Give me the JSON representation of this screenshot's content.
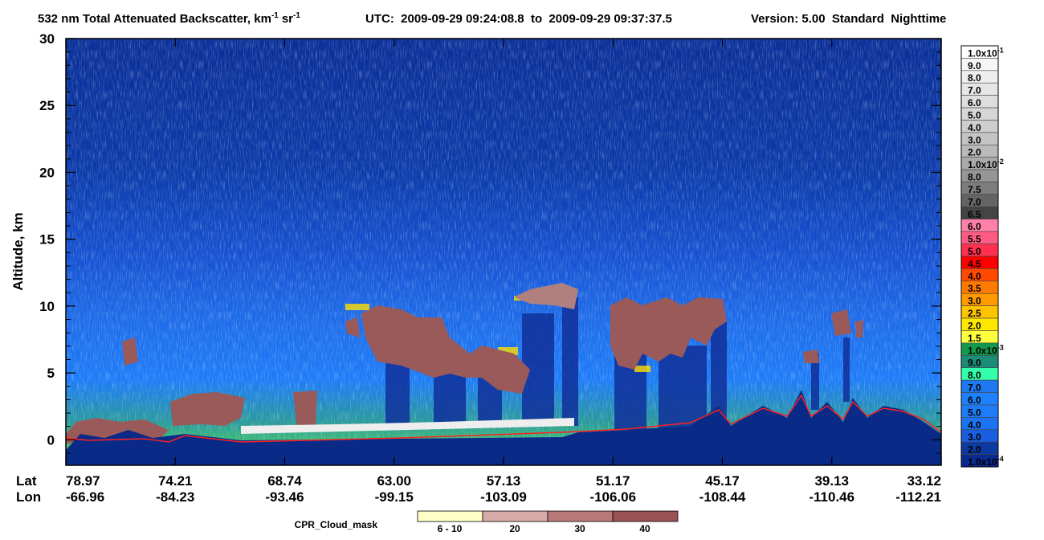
{
  "chart_data": {
    "type": "curtain",
    "title": {
      "text": "532 nm Total Attenuated Backscatter, km",
      "km_exp": "-1",
      "unit2": "sr",
      "sr_exp": "-1"
    },
    "time_range": "UTC:  2009-09-29 09:24:08.8  to  2009-09-29 09:37:37.5",
    "version": "Version: 5.00  Standard  Nighttime",
    "ylabel": "Altitude, km",
    "ylim": [
      -1.9,
      30
    ],
    "yticks": [
      0,
      5,
      10,
      15,
      20,
      25,
      30
    ],
    "x_row_labels": [
      "Lat",
      "Lon"
    ],
    "lat": [
      78.97,
      74.21,
      68.74,
      {
        "value": 63,
        "label": "63.00"
      },
      57.13,
      51.17,
      45.17,
      39.13,
      33.12
    ],
    "lon": [
      -66.96,
      -84.23,
      -93.46,
      -99.15,
      -103.09,
      -106.06,
      -108.44,
      -110.46,
      -112.21
    ],
    "colorbar": [
      {
        "value": 0.1,
        "label": "1.0x10",
        "exp": "-1",
        "color": "#ffffff"
      },
      {
        "value": 0.09,
        "label": "9.0",
        "color": "#f6f6f6"
      },
      {
        "value": 0.08,
        "label": "8.0",
        "color": "#eeeeee"
      },
      {
        "value": 0.07,
        "label": "7.0",
        "color": "#e6e6e6"
      },
      {
        "value": 0.06,
        "label": "6.0",
        "color": "#dedede"
      },
      {
        "value": 0.05,
        "label": "5.0",
        "color": "#d6d6d6"
      },
      {
        "value": 0.04,
        "label": "4.0",
        "color": "#cecece"
      },
      {
        "value": 0.03,
        "label": "3.0",
        "color": "#c4c4c4"
      },
      {
        "value": 0.02,
        "label": "2.0",
        "color": "#bababa"
      },
      {
        "value": 0.01,
        "label": "1.0x10",
        "exp": "-2",
        "color": "#aaaaaa"
      },
      {
        "value": 0.008,
        "label": "8.0",
        "color": "#969696"
      },
      {
        "value": 0.0075,
        "label": "7.5",
        "color": "#7d7d7d"
      },
      {
        "value": 0.007,
        "label": "7.0",
        "color": "#646464"
      },
      {
        "value": 0.0065,
        "label": "6.5",
        "color": "#444444"
      },
      {
        "value": 0.006,
        "label": "6.0",
        "color": "#ff80a8"
      },
      {
        "value": 0.0055,
        "label": "5.5",
        "color": "#ff5c84"
      },
      {
        "value": 0.005,
        "label": "5.0",
        "color": "#ff3050"
      },
      {
        "value": 0.0045,
        "label": "4.5",
        "color": "#ff0000"
      },
      {
        "value": 0.004,
        "label": "4.0",
        "color": "#ff4a00"
      },
      {
        "value": 0.0035,
        "label": "3.5",
        "color": "#ff7a00"
      },
      {
        "value": 0.003,
        "label": "3.0",
        "color": "#ff9a00"
      },
      {
        "value": 0.0025,
        "label": "2.5",
        "color": "#ffc400"
      },
      {
        "value": 0.002,
        "label": "2.0",
        "color": "#ffe800"
      },
      {
        "value": 0.0015,
        "label": "1.5",
        "color": "#ffff40"
      },
      {
        "value": 0.001,
        "label": "1.0x10",
        "exp": "-3",
        "color": "#13994e"
      },
      {
        "value": 0.0009,
        "label": "9.0",
        "color": "#1a8c78"
      },
      {
        "value": 0.0008,
        "label": "8.0",
        "color": "#33ffaa"
      },
      {
        "value": 0.0007,
        "label": "7.0",
        "color": "#1e78f0"
      },
      {
        "value": 0.0006,
        "label": "6.0",
        "color": "#1e82ff"
      },
      {
        "value": 0.0005,
        "label": "5.0",
        "color": "#1e7cf8"
      },
      {
        "value": 0.0004,
        "label": "4.0",
        "color": "#1c74f4"
      },
      {
        "value": 0.0003,
        "label": "3.0",
        "color": "#1a5ee0"
      },
      {
        "value": 0.0002,
        "label": "2.0",
        "color": "#0d3aa0"
      },
      {
        "value": 0.0001,
        "label": "1.0x10",
        "exp": "-4",
        "color": "#0a2a90"
      }
    ],
    "cloud_mask_label": "CPR_Cloud_mask",
    "cloud_mask": [
      {
        "label": "6 - 10",
        "color": "#ffffc8"
      },
      {
        "label": "20",
        "color": "#d8aaa8"
      },
      {
        "label": "30",
        "color": "#b87a78"
      },
      {
        "label": "40",
        "color": "#9a5252"
      }
    ]
  }
}
